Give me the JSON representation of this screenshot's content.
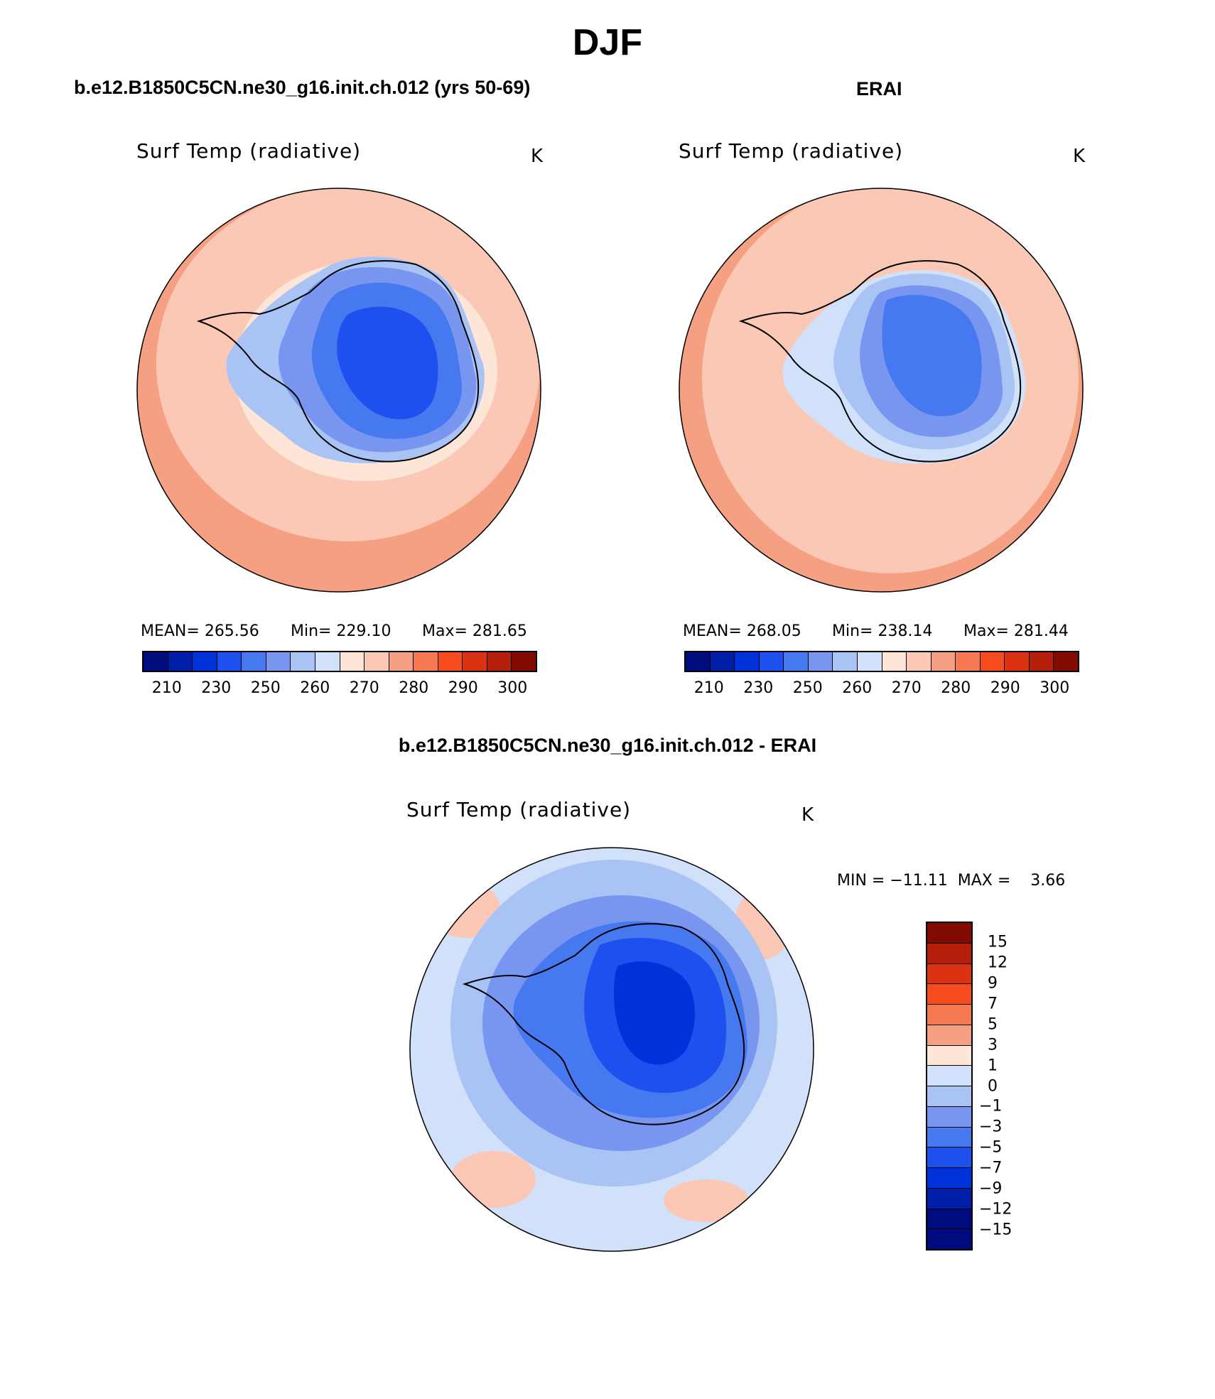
{
  "title": "DJF",
  "panels": [
    {
      "case_title": "b.e12.B1850C5CN.ne30_g16.init.ch.012 (yrs 50-69)",
      "variable": "Surf Temp (radiative)",
      "units": "K",
      "stats": {
        "mean": "MEAN= 265.56",
        "min": "Min= 229.10",
        "max": "Max= 281.65"
      },
      "colorbar_ticks": [
        "210",
        "230",
        "250",
        "260",
        "270",
        "280",
        "290",
        "300"
      ]
    },
    {
      "case_title": "ERAI",
      "variable": "Surf Temp (radiative)",
      "units": "K",
      "stats": {
        "mean": "MEAN= 268.05",
        "min": "Min= 238.14",
        "max": "Max= 281.44"
      },
      "colorbar_ticks": [
        "210",
        "230",
        "250",
        "260",
        "270",
        "280",
        "290",
        "300"
      ]
    }
  ],
  "difference": {
    "case_title": "b.e12.B1850C5CN.ne30_g16.init.ch.012 - ERAI",
    "variable": "Surf Temp (radiative)",
    "units": "K",
    "minmax": "MIN = −11.11  MAX =    3.66",
    "colorbar_ticks": [
      "15",
      "12",
      "9",
      "7",
      "5",
      "3",
      "1",
      "0",
      "−1",
      "−3",
      "−5",
      "−7",
      "−9",
      "−12",
      "−15"
    ]
  },
  "colors": {
    "abs_scale": [
      "#000c7d",
      "#001eaa",
      "#0032dc",
      "#1e50f0",
      "#4678f0",
      "#7896f0",
      "#aac3f5",
      "#d2e1fa",
      "#fde6d7",
      "#fac8b4",
      "#f5a082",
      "#f57850",
      "#f54b1e",
      "#dc3214",
      "#b41e0a",
      "#820a00"
    ],
    "diff_scale": [
      "#820a00",
      "#b41e0a",
      "#dc3214",
      "#f54b1e",
      "#f57850",
      "#f5a082",
      "#fde6d7",
      "#d2e1fa",
      "#aac3f5",
      "#7896f0",
      "#4678f0",
      "#1e50f0",
      "#0032dc",
      "#001eaa",
      "#000c7d"
    ]
  }
}
